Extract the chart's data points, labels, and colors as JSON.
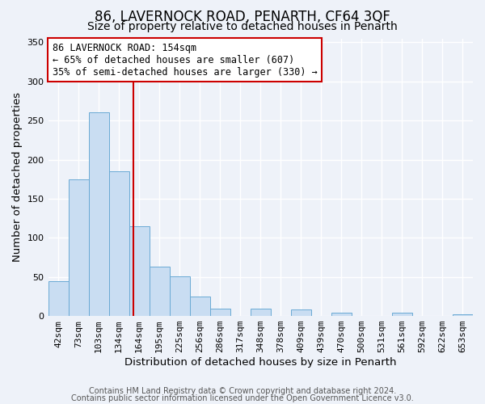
{
  "title": "86, LAVERNOCK ROAD, PENARTH, CF64 3QF",
  "subtitle": "Size of property relative to detached houses in Penarth",
  "xlabel": "Distribution of detached houses by size in Penarth",
  "ylabel": "Number of detached properties",
  "bin_labels": [
    "42sqm",
    "73sqm",
    "103sqm",
    "134sqm",
    "164sqm",
    "195sqm",
    "225sqm",
    "256sqm",
    "286sqm",
    "317sqm",
    "348sqm",
    "378sqm",
    "409sqm",
    "439sqm",
    "470sqm",
    "500sqm",
    "531sqm",
    "561sqm",
    "592sqm",
    "622sqm",
    "653sqm"
  ],
  "bin_values": [
    44,
    175,
    260,
    185,
    115,
    63,
    51,
    25,
    9,
    0,
    9,
    0,
    8,
    0,
    4,
    0,
    0,
    4,
    0,
    0,
    2
  ],
  "bar_color": "#c9ddf2",
  "bar_edge_color": "#6aaad4",
  "vline_x": 3.72,
  "vline_color": "#cc0000",
  "annotation_line1": "86 LAVERNOCK ROAD: 154sqm",
  "annotation_line2": "← 65% of detached houses are smaller (607)",
  "annotation_line3": "35% of semi-detached houses are larger (330) →",
  "annotation_box_color": "#ffffff",
  "annotation_box_edge": "#cc0000",
  "ylim": [
    0,
    355
  ],
  "yticks": [
    0,
    50,
    100,
    150,
    200,
    250,
    300,
    350
  ],
  "footer1": "Contains HM Land Registry data © Crown copyright and database right 2024.",
  "footer2": "Contains public sector information licensed under the Open Government Licence v3.0.",
  "bg_color": "#eef2f9",
  "grid_color": "#ffffff",
  "title_fontsize": 12,
  "subtitle_fontsize": 10,
  "axis_label_fontsize": 9.5,
  "tick_fontsize": 8,
  "annot_fontsize": 8.5,
  "footer_fontsize": 7
}
